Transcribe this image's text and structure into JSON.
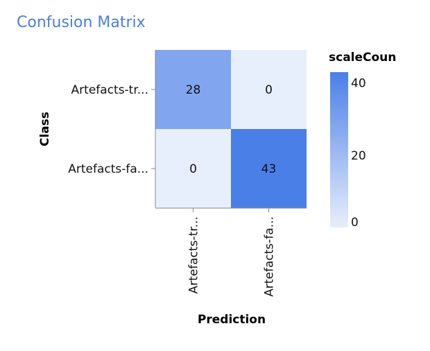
{
  "page": {
    "title": "Confusion Matrix"
  },
  "chart_data": {
    "type": "heatmap",
    "title": "",
    "xlabel": "Prediction",
    "ylabel": "Class",
    "x_categories": [
      "Artefacts-tr...",
      "Artefacts-fa..."
    ],
    "y_categories": [
      "Artefacts-tr...",
      "Artefacts-fa..."
    ],
    "values": [
      [
        28,
        0
      ],
      [
        0,
        43
      ]
    ],
    "color_scale": {
      "title": "scaleCoun",
      "domain": [
        0,
        43
      ],
      "ticks": [
        0,
        20,
        40
      ],
      "low_color": "#e8effc",
      "high_color": "#4a7fe8"
    },
    "legend": "right",
    "grid": false
  }
}
